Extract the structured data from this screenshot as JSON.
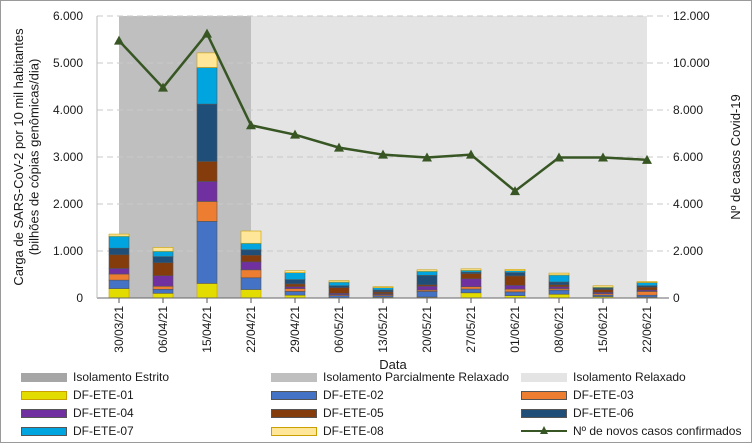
{
  "chart_data": {
    "type": "bar",
    "stacked": true,
    "xlabel": "Data",
    "ylabel": "Carga de SARS-CoV-2 por 10 mil habitantes (bilhões de cópias genômicas/dia)",
    "y2label": "Nº de casos Covid-19",
    "ylim": [
      0,
      6000
    ],
    "y2lim": [
      0,
      12000
    ],
    "yticks": [
      "0",
      "1.000",
      "2.000",
      "3.000",
      "4.000",
      "5.000",
      "6.000"
    ],
    "y2ticks": [
      "0",
      "2.000",
      "4.000",
      "6.000",
      "8.000",
      "10.000",
      "12.000"
    ],
    "grid": true,
    "legend_position": "bottom",
    "categories": [
      "30/03/21",
      "06/04/21",
      "15/04/21",
      "22/04/21",
      "29/04/21",
      "06/05/21",
      "13/05/21",
      "20/05/21",
      "27/05/21",
      "01/06/21",
      "08/06/21",
      "15/06/21",
      "22/06/21"
    ],
    "periods": [
      {
        "name": "Isolamento Estrito",
        "from": "30/03/21",
        "to": "30/03/21",
        "color": "#a6a6a6"
      },
      {
        "name": "Isolamento Parcialmente Relaxado",
        "from": "30/03/21",
        "to": "22/04/21",
        "color": "#bfbfbf"
      },
      {
        "name": "Isolamento Relaxado",
        "from": "22/04/21",
        "to": "22/06/21",
        "color": "#e4e4e4"
      }
    ],
    "series": [
      {
        "name": "DF-ETE-01",
        "color": "#e3dc00",
        "values": [
          200,
          100,
          310,
          180,
          60,
          10,
          20,
          20,
          110,
          50,
          80,
          30,
          20
        ]
      },
      {
        "name": "DF-ETE-02",
        "color": "#4472c4",
        "values": [
          180,
          85,
          1320,
          250,
          80,
          40,
          30,
          120,
          80,
          80,
          90,
          30,
          40
        ]
      },
      {
        "name": "DF-ETE-03",
        "color": "#ed7d31",
        "values": [
          130,
          65,
          425,
          170,
          60,
          20,
          20,
          30,
          50,
          60,
          30,
          30,
          80
        ]
      },
      {
        "name": "DF-ETE-04",
        "color": "#7030a0",
        "values": [
          120,
          225,
          425,
          170,
          40,
          30,
          20,
          80,
          170,
          80,
          40,
          30,
          30
        ]
      },
      {
        "name": "DF-ETE-05",
        "color": "#843c0c",
        "values": [
          290,
          275,
          425,
          140,
          60,
          120,
          40,
          30,
          110,
          200,
          40,
          60,
          60
        ]
      },
      {
        "name": "DF-ETE-06",
        "color": "#1f4e79",
        "values": [
          140,
          130,
          1220,
          115,
          90,
          40,
          40,
          200,
          30,
          70,
          60,
          30,
          30
        ]
      },
      {
        "name": "DF-ETE-07",
        "color": "#00a5e0",
        "values": [
          255,
          115,
          780,
          140,
          150,
          80,
          50,
          90,
          40,
          40,
          150,
          20,
          70
        ]
      },
      {
        "name": "DF-ETE-08",
        "color": "#ffe699",
        "values": [
          45,
          80,
          310,
          260,
          40,
          30,
          20,
          30,
          30,
          30,
          40,
          30,
          20
        ]
      }
    ],
    "line": {
      "name": "Nº de novos casos confirmados",
      "color": "#375623",
      "axis": "right",
      "values": [
        10950,
        8950,
        11250,
        7350,
        6950,
        6400,
        6100,
        5980,
        6100,
        4550,
        5980,
        5980,
        5880
      ]
    }
  }
}
